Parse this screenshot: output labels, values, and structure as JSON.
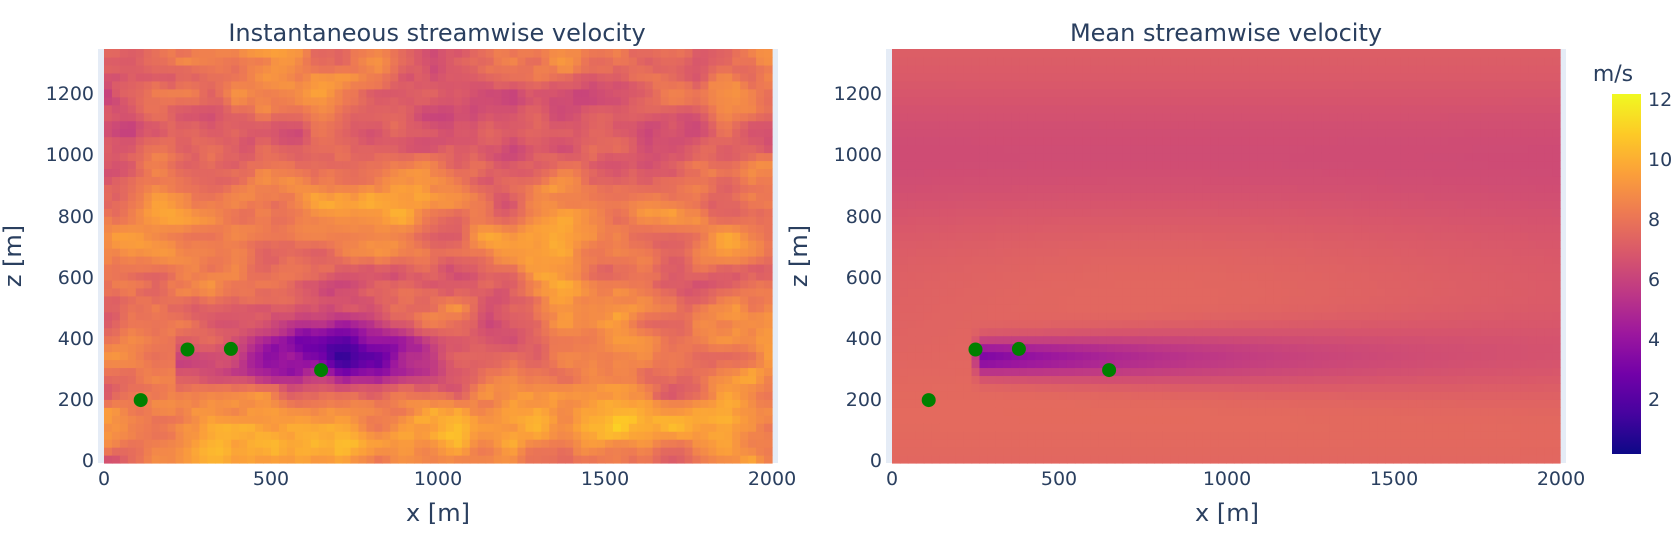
{
  "chart_data": [
    {
      "type": "heatmap",
      "title": "Instantaneous streamwise velocity",
      "xlabel": "x [m]",
      "ylabel": "z [m]",
      "xlim": [
        0,
        2000
      ],
      "ylim": [
        0,
        1350
      ],
      "xticks": [
        "0",
        "500",
        "1000",
        "1500",
        "2000"
      ],
      "yticks": [
        "0",
        "200",
        "400",
        "600",
        "800",
        "1000",
        "1200"
      ],
      "colorscale": "plasma",
      "turbines": {
        "x": [
          110,
          250,
          380,
          650
        ],
        "z": [
          205,
          370,
          372,
          303
        ]
      },
      "wake": {
        "x_start": 240,
        "x_peak": 650,
        "z_center": 330,
        "min_velocity": 2.5
      }
    },
    {
      "type": "heatmap",
      "title": "Mean streamwise velocity",
      "xlabel": "x [m]",
      "ylabel": "z [m]",
      "xlim": [
        0,
        2000
      ],
      "ylim": [
        0,
        1350
      ],
      "xticks": [
        "0",
        "500",
        "1000",
        "1500",
        "2000"
      ],
      "yticks": [
        "0",
        "200",
        "400",
        "600",
        "800",
        "1000",
        "1200"
      ],
      "colorscale": "plasma",
      "turbines": {
        "x": [
          110,
          250,
          380,
          650
        ],
        "z": [
          205,
          370,
          372,
          303
        ]
      },
      "wake": {
        "x_start": 250,
        "x_peak": 400,
        "z_center": 345,
        "min_velocity": 3.5
      }
    }
  ],
  "colorbar": {
    "title": "m/s",
    "range": [
      0.5,
      12.5
    ],
    "ticks": [
      "2",
      "4",
      "6",
      "8",
      "10",
      "12"
    ]
  },
  "colors": {
    "turbine_marker": "#008000",
    "plasma": [
      "#0d0887",
      "#46039f",
      "#7201a8",
      "#9c179e",
      "#bd3786",
      "#d8576b",
      "#ed7953",
      "#fb9f3a",
      "#fdca26",
      "#f0f921"
    ]
  }
}
